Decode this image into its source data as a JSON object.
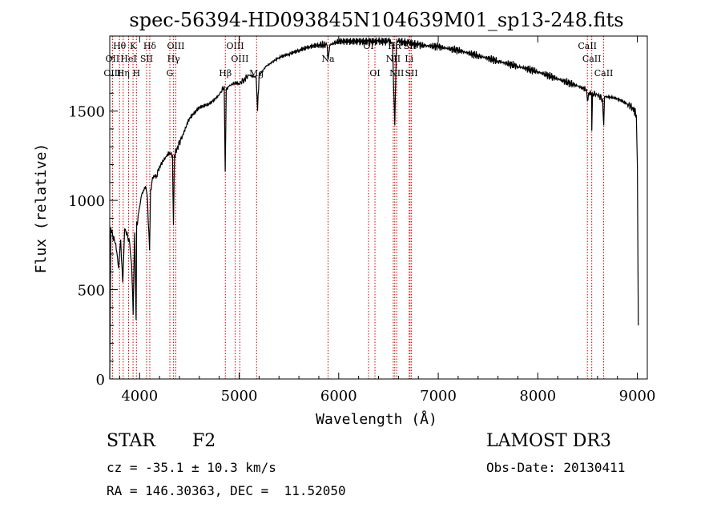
{
  "chart_data": {
    "type": "line",
    "title": "spec-56394-HD093845N104639M01_sp13-248.fits",
    "xlabel": "Wavelength (Å)",
    "ylabel": "Flux (relative)",
    "xlim": [
      3700,
      9100
    ],
    "ylim": [
      0,
      1920
    ],
    "x_ticks": [
      4000,
      5000,
      6000,
      7000,
      8000,
      9000
    ],
    "y_ticks": [
      0,
      500,
      1000,
      1500
    ],
    "series": [
      {
        "name": "flux",
        "x": [
          3700,
          3710,
          3730,
          3760,
          3790,
          3810,
          3830,
          3850,
          3880,
          3900,
          3920,
          3935,
          3950,
          3965,
          3970,
          3975,
          3990,
          4020,
          4060,
          4080,
          4100,
          4110,
          4130,
          4170,
          4200,
          4260,
          4300,
          4330,
          4340,
          4350,
          4380,
          4430,
          4500,
          4600,
          4700,
          4800,
          4850,
          4860,
          4870,
          4900,
          4960,
          5000,
          5050,
          5100,
          5170,
          5185,
          5200,
          5270,
          5400,
          5500,
          5600,
          5700,
          5800,
          5880,
          5895,
          5910,
          6000,
          6100,
          6200,
          6300,
          6400,
          6500,
          6540,
          6563,
          6580,
          6600,
          6700,
          6800,
          7000,
          7200,
          7400,
          7600,
          7800,
          8000,
          8200,
          8400,
          8490,
          8498,
          8510,
          8540,
          8542,
          8550,
          8600,
          8650,
          8662,
          8670,
          8700,
          8800,
          8900,
          8950,
          8990,
          9000,
          9010
        ],
        "y": [
          0,
          850,
          800,
          760,
          620,
          780,
          540,
          840,
          800,
          760,
          640,
          360,
          820,
          330,
          880,
          860,
          930,
          1030,
          1080,
          1000,
          720,
          1060,
          1130,
          1140,
          1190,
          1240,
          1270,
          1250,
          860,
          1250,
          1300,
          1360,
          1460,
          1520,
          1540,
          1590,
          1640,
          1160,
          1620,
          1640,
          1660,
          1650,
          1680,
          1700,
          1690,
          1500,
          1700,
          1750,
          1800,
          1820,
          1840,
          1860,
          1870,
          1870,
          1790,
          1870,
          1890,
          1890,
          1890,
          1890,
          1890,
          1890,
          1880,
          1420,
          1880,
          1890,
          1880,
          1870,
          1860,
          1840,
          1810,
          1780,
          1750,
          1720,
          1680,
          1640,
          1620,
          1560,
          1600,
          1600,
          1390,
          1600,
          1590,
          1570,
          1420,
          1580,
          1580,
          1570,
          1540,
          1520,
          1480,
          1200,
          300
        ]
      }
    ],
    "spectral_lines": [
      {
        "label": "Hθ",
        "wl": 3798,
        "row": 0
      },
      {
        "label": "K",
        "wl": 3934,
        "row": 0
      },
      {
        "label": "Hδ",
        "wl": 4102,
        "row": 0
      },
      {
        "label": "OIII",
        "wl": 4364,
        "row": 0
      },
      {
        "label": "OIII",
        "wl": 4960,
        "row": 0
      },
      {
        "label": "OI",
        "wl": 6300,
        "row": 0
      },
      {
        "label": "Hα",
        "wl": 6563,
        "row": 0
      },
      {
        "label": "SII",
        "wl": 6717,
        "row": 0
      },
      {
        "label": "CaII",
        "wl": 8498,
        "row": 0
      },
      {
        "label": "OII",
        "wl": 3727,
        "row": 1
      },
      {
        "label": "HeI",
        "wl": 3889,
        "row": 1
      },
      {
        "label": "SII",
        "wl": 4070,
        "row": 1
      },
      {
        "label": "Hγ",
        "wl": 4341,
        "row": 1
      },
      {
        "label": "OIII",
        "wl": 5007,
        "row": 1
      },
      {
        "label": "Na",
        "wl": 5893,
        "row": 1
      },
      {
        "label": "NII",
        "wl": 6548,
        "row": 1
      },
      {
        "label": "Li",
        "wl": 6708,
        "row": 1
      },
      {
        "label": "CaII",
        "wl": 8542,
        "row": 1
      },
      {
        "label": "OIII",
        "wl": 3727,
        "row": 2
      },
      {
        "label": "Hη",
        "wl": 3835,
        "row": 2
      },
      {
        "label": "H",
        "wl": 3968,
        "row": 2
      },
      {
        "label": "G",
        "wl": 4304,
        "row": 2
      },
      {
        "label": "Hβ",
        "wl": 4861,
        "row": 2
      },
      {
        "label": "Mg",
        "wl": 5175,
        "row": 2
      },
      {
        "label": "OI",
        "wl": 6364,
        "row": 2
      },
      {
        "label": "NII",
        "wl": 6583,
        "row": 2
      },
      {
        "label": "SII",
        "wl": 6731,
        "row": 2
      },
      {
        "label": "CaII",
        "wl": 8662,
        "row": 2
      }
    ]
  },
  "info": {
    "object_class": "STAR",
    "subclass": "F2",
    "survey": "LAMOST DR3",
    "redshift": "cz = -35.1 ± 10.3 km/s",
    "obs_date": "Obs-Date: 20130411",
    "coords": "RA = 146.30363, DEC =  11.52050"
  },
  "colors": {
    "line_marker": "#c80000",
    "spectrum": "#000000"
  }
}
